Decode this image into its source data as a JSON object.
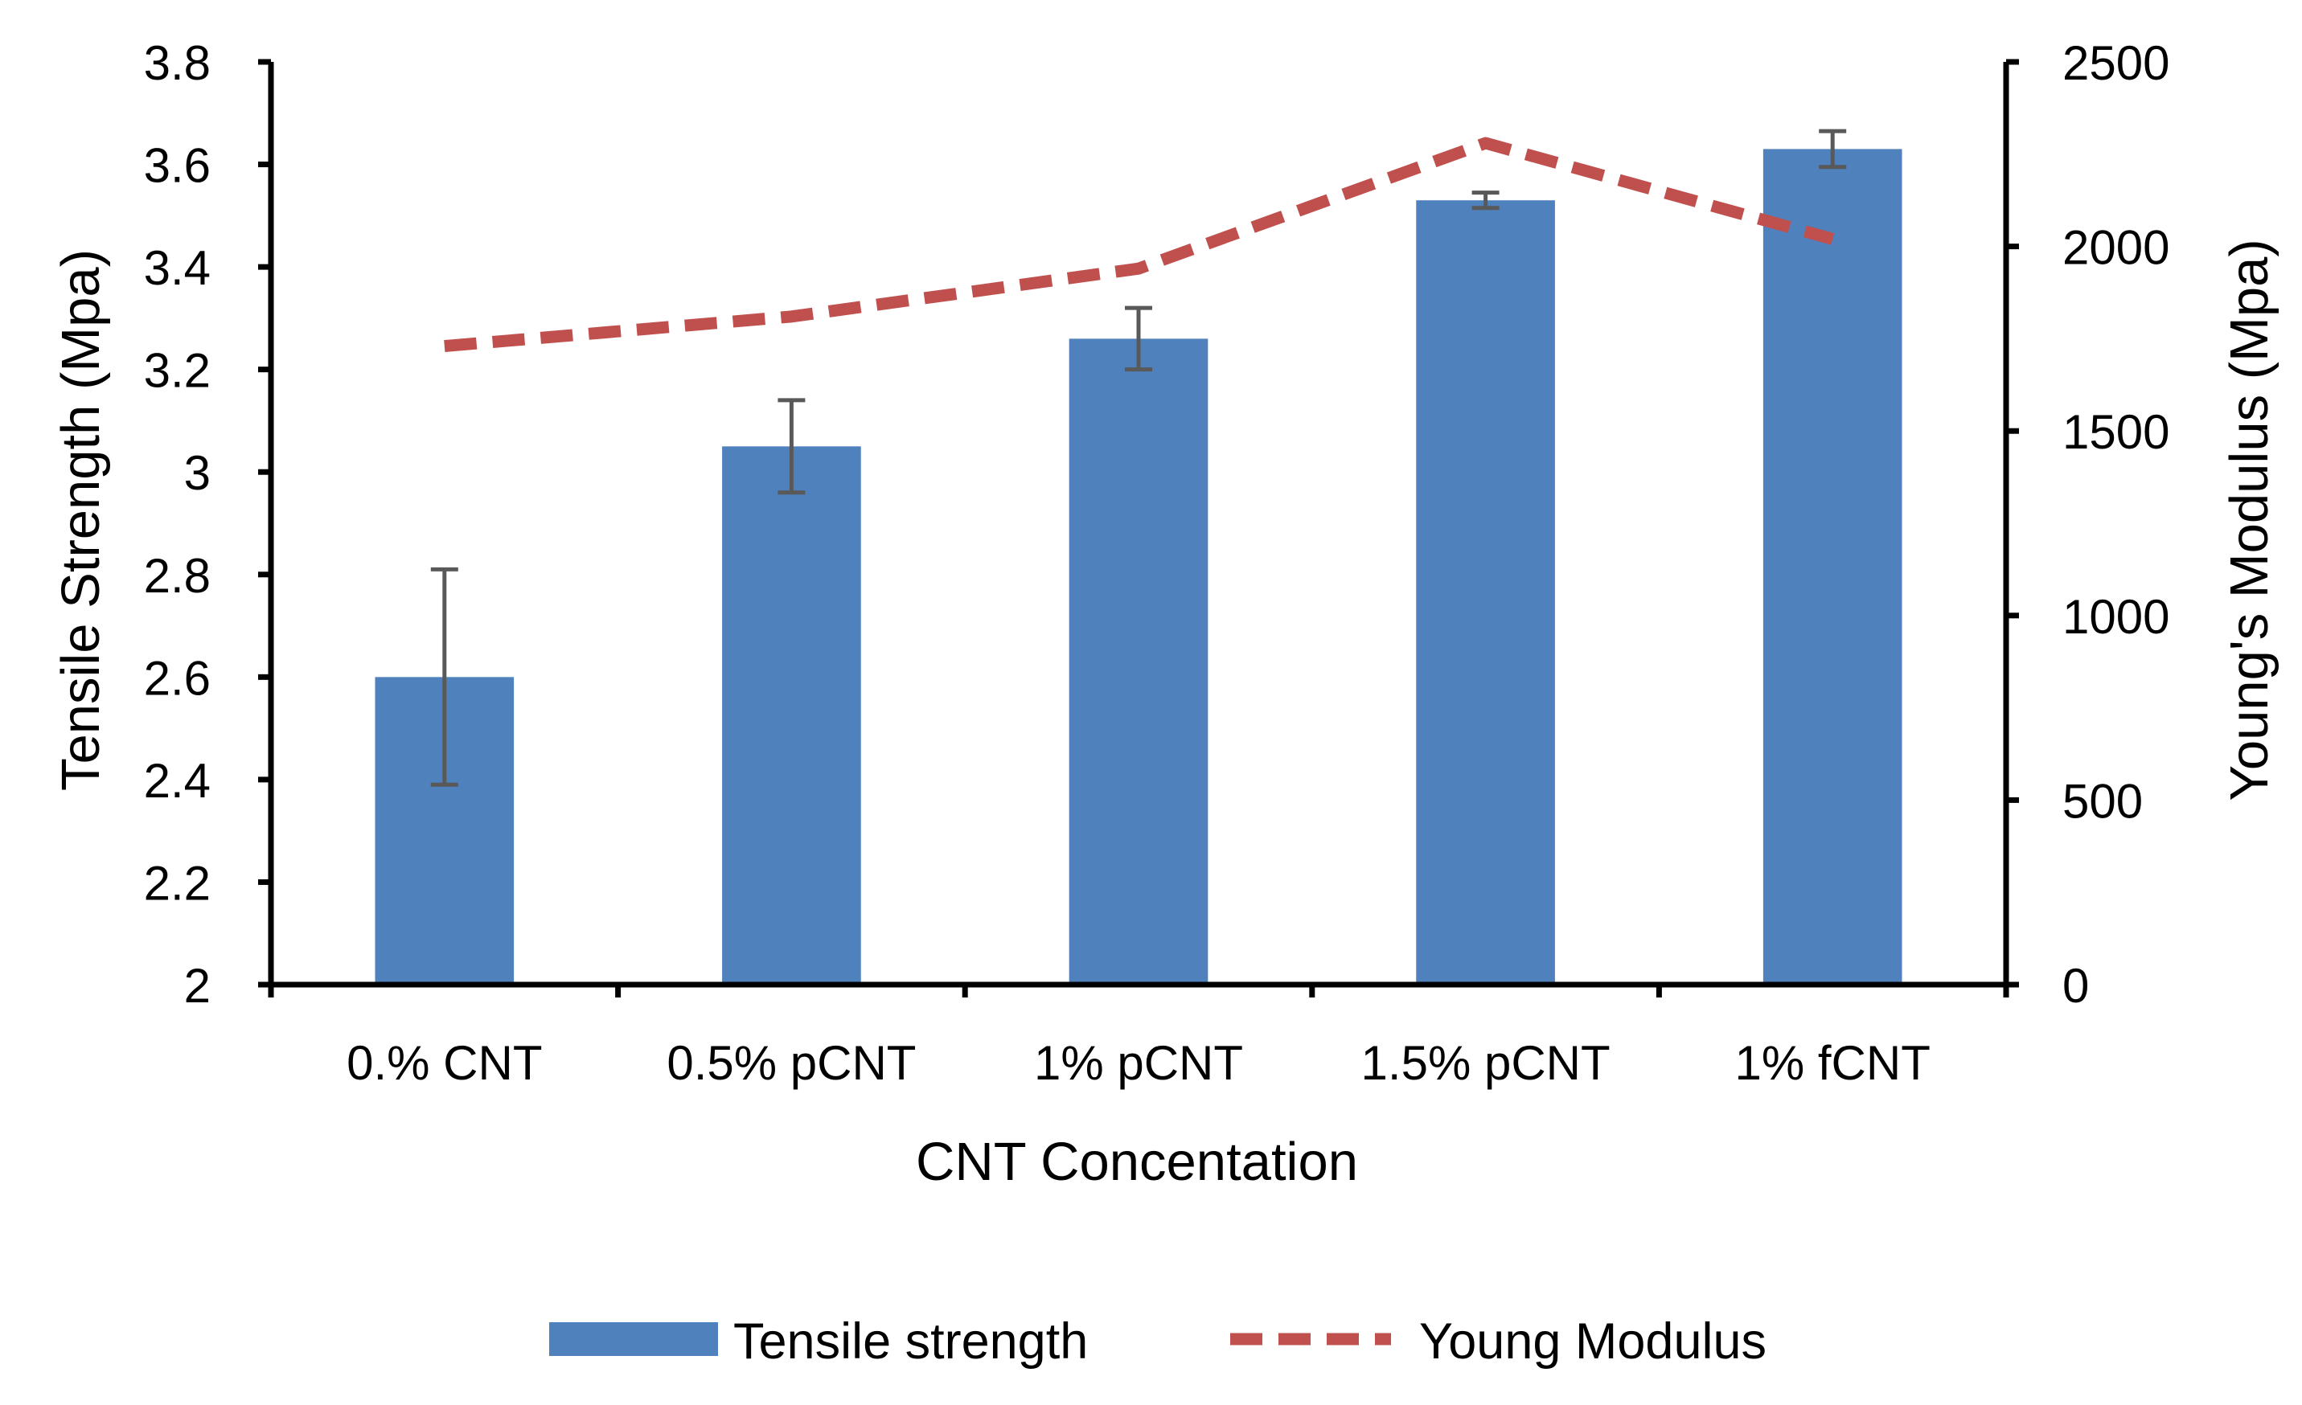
{
  "chart_data": {
    "type": "bar",
    "categories": [
      "0.% CNT",
      "0.5% pCNT",
      "1% pCNT",
      "1.5% pCNT",
      "1% fCNT"
    ],
    "xlabel": "CNT Concentation",
    "ylabel": "Tensile Strength (Mpa)",
    "y2label": "Young's Modulus (Mpa)",
    "ylim": [
      2,
      3.8
    ],
    "y2lim": [
      0,
      2500
    ],
    "yticks": [
      "2",
      "2.2",
      "2.4",
      "2.6",
      "2.8",
      "3",
      "3.2",
      "3.4",
      "3.6",
      "3.8"
    ],
    "y2ticks": [
      "0",
      "500",
      "1000",
      "1500",
      "2000",
      "2500"
    ],
    "grid": false,
    "legend_position": "bottom",
    "series": [
      {
        "name": "Tensile strength",
        "kind": "bar",
        "axis": "left",
        "color": "#4F81BD",
        "values": [
          2.6,
          3.05,
          3.26,
          3.53,
          3.63
        ],
        "error": [
          0.21,
          0.09,
          0.06,
          0.015,
          0.035
        ]
      },
      {
        "name": "Young Modulus",
        "kind": "line",
        "style": "dashed",
        "axis": "right",
        "color": "#C0504D",
        "values": [
          1730,
          1810,
          1940,
          2280,
          2020
        ]
      }
    ]
  }
}
